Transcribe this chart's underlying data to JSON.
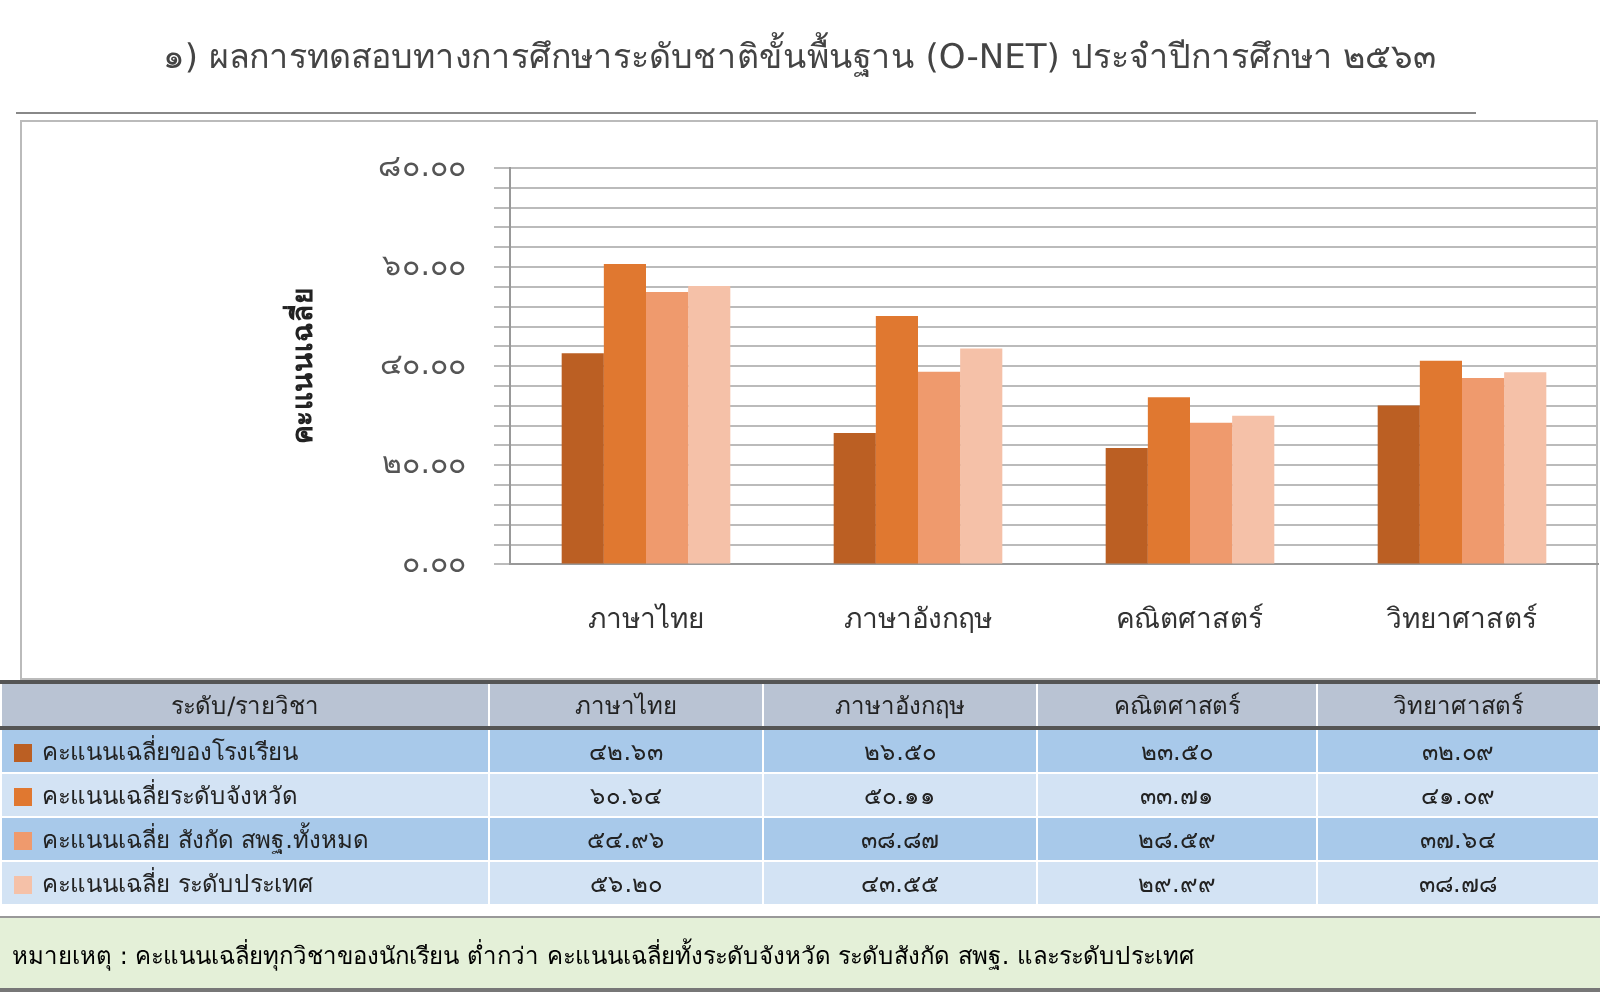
{
  "chart_data": {
    "type": "bar",
    "title": "๑) ผลการทดสอบทางการศึกษาระดับชาติขั้นพื้นฐาน (O-NET) ประจำปีการศึกษา ๒๕๖๓",
    "ylabel": "คะแนนเฉลี่ย",
    "categories": [
      "ภาษาไทย",
      "ภาษาอังกฤษ",
      "คณิตศาสตร์",
      "วิทยาศาสตร์"
    ],
    "series": [
      {
        "name": "คะแนนเฉลี่ยของโรงเรียน",
        "color": "#bb5f23",
        "values": [
          42.63,
          26.5,
          23.5,
          32.09
        ],
        "value_labels": [
          "๔๒.๖๓",
          "๒๖.๕๐",
          "๒๓.๕๐",
          "๓๒.๐๙"
        ]
      },
      {
        "name": "คะแนนเฉลี่ยระดับจังหวัด",
        "color": "#e07830",
        "values": [
          60.64,
          50.11,
          33.71,
          41.09
        ],
        "value_labels": [
          "๖๐.๖๔",
          "๕๐.๑๑",
          "๓๓.๗๑",
          "๔๑.๐๙"
        ]
      },
      {
        "name": "คะแนนเฉลี่ย  สังกัด  สพฐ.ทั้งหมด",
        "color": "#ef9a6d",
        "values": [
          54.96,
          38.87,
          28.59,
          37.64
        ],
        "value_labels": [
          "๕๔.๙๖",
          "๓๘.๘๗",
          "๒๘.๕๙",
          "๓๗.๖๔"
        ]
      },
      {
        "name": "คะแนนเฉลี่ย  ระดับประเทศ",
        "color": "#f5c1a8",
        "values": [
          56.2,
          43.55,
          29.99,
          38.78
        ],
        "value_labels": [
          "๕๖.๒๐",
          "๔๓.๕๕",
          "๒๙.๙๙",
          "๓๘.๗๘"
        ]
      }
    ],
    "ylim": [
      0,
      80
    ],
    "yticks": [
      {
        "value": 0,
        "label": "๐.๐๐"
      },
      {
        "value": 4,
        "label": null
      },
      {
        "value": 8,
        "label": null
      },
      {
        "value": 12,
        "label": null
      },
      {
        "value": 16,
        "label": null
      },
      {
        "value": 20,
        "label": "๒๐.๐๐"
      },
      {
        "value": 24,
        "label": null
      },
      {
        "value": 28,
        "label": null
      },
      {
        "value": 32,
        "label": null
      },
      {
        "value": 36,
        "label": null
      },
      {
        "value": 40,
        "label": "๔๐.๐๐"
      },
      {
        "value": 44,
        "label": null
      },
      {
        "value": 48,
        "label": null
      },
      {
        "value": 52,
        "label": null
      },
      {
        "value": 56,
        "label": null
      },
      {
        "value": 60,
        "label": "๖๐.๐๐"
      },
      {
        "value": 64,
        "label": null
      },
      {
        "value": 68,
        "label": null
      },
      {
        "value": 72,
        "label": null
      },
      {
        "value": 76,
        "label": null
      },
      {
        "value": 80,
        "label": "๘๐.๐๐"
      }
    ],
    "grid": "y",
    "legend": "bottom",
    "annotations": [
      "ระดับ/รายวิชา",
      "หมายเหตุ : คะแนนเฉลี่ยทุกวิชาของนักเรียน  ต่ำกว่า คะแนนเฉลี่ยทั้งระดับจังหวัด ระดับสังกัด สพฐ. และระดับประเทศ"
    ]
  }
}
